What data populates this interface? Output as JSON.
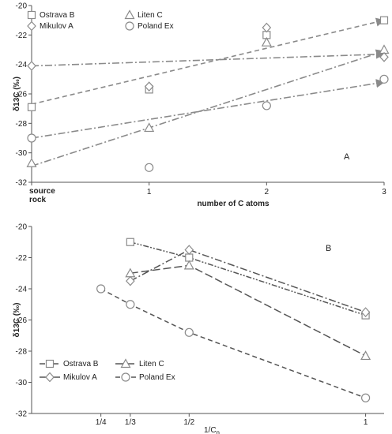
{
  "chart_data": [
    {
      "type": "scatter",
      "panel_label": "A",
      "xlabel": "number of C atoms",
      "ylabel": "δ13C (‰)",
      "ylim": [
        -32,
        -20
      ],
      "xlim": [
        0,
        3
      ],
      "x_ticks": [
        0,
        1,
        2,
        3
      ],
      "x_tick_labels": [
        "source rock",
        "1",
        "2",
        "3"
      ],
      "y_ticks": [
        -32,
        -30,
        -28,
        -26,
        -24,
        -22,
        -20
      ],
      "y_tick_labels": [
        "-32",
        "-30",
        "-28",
        "-26",
        "-24",
        "-22",
        "-20"
      ],
      "legend_position": "top-left",
      "series": [
        {
          "name": "Ostrava B",
          "marker": "square",
          "points": [
            {
              "x": 0,
              "y": -26.9
            },
            {
              "x": 1,
              "y": -25.7
            },
            {
              "x": 2,
              "y": -22.0
            },
            {
              "x": 3,
              "y": -21.0
            }
          ]
        },
        {
          "name": "Liten C",
          "marker": "triangle",
          "points": [
            {
              "x": 0,
              "y": -30.7
            },
            {
              "x": 1,
              "y": -28.3
            },
            {
              "x": 2,
              "y": -22.5
            },
            {
              "x": 3,
              "y": -23.0
            }
          ]
        },
        {
          "name": "Mikulov A",
          "marker": "diamond",
          "points": [
            {
              "x": 0,
              "y": -24.1
            },
            {
              "x": 1,
              "y": -25.5
            },
            {
              "x": 2,
              "y": -21.5
            },
            {
              "x": 3,
              "y": -23.5
            }
          ]
        },
        {
          "name": "Poland Ex",
          "marker": "circle",
          "points": [
            {
              "x": 0,
              "y": -29.0
            },
            {
              "x": 1,
              "y": -31.0
            },
            {
              "x": 2,
              "y": -26.8
            },
            {
              "x": 3,
              "y": -25.0
            }
          ]
        }
      ],
      "trend_lines": [
        {
          "series": "Ostrava B",
          "dash": "dash",
          "from": {
            "x": 0,
            "y": -26.7
          },
          "to": {
            "x": 3,
            "y": -21.0
          }
        },
        {
          "series": "Liten C",
          "dash": "dash-dot",
          "from": {
            "x": 0,
            "y": -30.9
          },
          "to": {
            "x": 3,
            "y": -23.1
          }
        },
        {
          "series": "Mikulov A",
          "dash": "dash-dot",
          "from": {
            "x": 0,
            "y": -24.1
          },
          "to": {
            "x": 3,
            "y": -23.3
          }
        },
        {
          "series": "Poland Ex",
          "dash": "dash-dot",
          "from": {
            "x": 0,
            "y": -29.0
          },
          "to": {
            "x": 3,
            "y": -25.2
          }
        }
      ]
    },
    {
      "type": "line",
      "panel_label": "B",
      "xlabel": "1/C",
      "xlabel_sub": "n",
      "ylabel": "δ13C (‰)",
      "ylim": [
        -32,
        -20
      ],
      "xlim": [
        0,
        1.05
      ],
      "x_ticks": [
        0.25,
        0.3333,
        0.5,
        1
      ],
      "x_tick_labels": [
        "1/4",
        "1/3",
        "1/2",
        "1"
      ],
      "y_ticks": [
        -32,
        -30,
        -28,
        -26,
        -24,
        -22,
        -20
      ],
      "y_tick_labels": [
        "-32",
        "-30",
        "-28",
        "-26",
        "-24",
        "-22",
        "-20"
      ],
      "legend_position": "bottom-left",
      "series": [
        {
          "name": "Ostrava B",
          "marker": "square",
          "dash": "dash-dot-dot",
          "points": [
            {
              "x": 0.3333,
              "y": -21.0
            },
            {
              "x": 0.5,
              "y": -22.0
            },
            {
              "x": 1,
              "y": -25.7
            }
          ]
        },
        {
          "name": "Liten C",
          "marker": "triangle",
          "dash": "long-dash",
          "points": [
            {
              "x": 0.3333,
              "y": -23.0
            },
            {
              "x": 0.5,
              "y": -22.5
            },
            {
              "x": 1,
              "y": -28.3
            }
          ]
        },
        {
          "name": "Mikulov A",
          "marker": "diamond",
          "dash": "dash-dot",
          "points": [
            {
              "x": 0.3333,
              "y": -23.5
            },
            {
              "x": 0.5,
              "y": -21.5
            },
            {
              "x": 1,
              "y": -25.5
            }
          ]
        },
        {
          "name": "Poland Ex",
          "marker": "circle",
          "dash": "dash",
          "points": [
            {
              "x": 0.25,
              "y": -24.0
            },
            {
              "x": 0.3333,
              "y": -25.0
            },
            {
              "x": 0.5,
              "y": -26.8
            },
            {
              "x": 1,
              "y": -31.0
            }
          ]
        }
      ]
    }
  ]
}
